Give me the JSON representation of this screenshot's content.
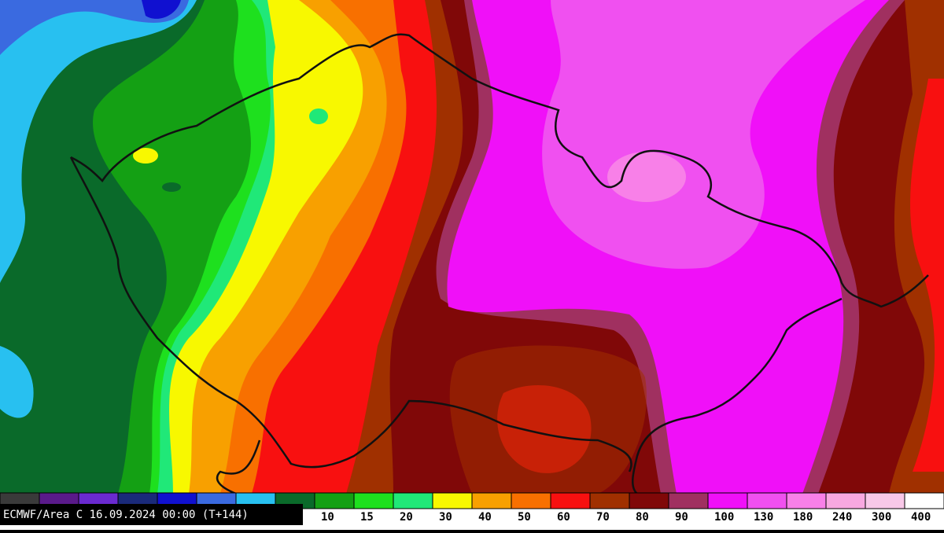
{
  "header": {
    "caption": "ECMWF/Area C 16.09.2024 00:00 (T+144)"
  },
  "legend": {
    "unlabeled_colors": [
      "#3a3a3a",
      "#5a1a8a",
      "#6a2ad0",
      "#1a2a7a",
      "#1010d0",
      "#3a6ae0",
      "#28c0f0",
      "#0a6a2a"
    ],
    "items": [
      {
        "color": "#14a014",
        "label": "10"
      },
      {
        "color": "#1ee01e",
        "label": "15"
      },
      {
        "color": "#20e878",
        "label": "20"
      },
      {
        "color": "#f8f800",
        "label": "30"
      },
      {
        "color": "#f8a000",
        "label": "40"
      },
      {
        "color": "#f87000",
        "label": "50"
      },
      {
        "color": "#f81010",
        "label": "60"
      },
      {
        "color": "#a03000",
        "label": "70"
      },
      {
        "color": "#800808",
        "label": "80"
      },
      {
        "color": "#a03060",
        "label": "90"
      },
      {
        "color": "#f010f8",
        "label": "100"
      },
      {
        "color": "#f050f0",
        "label": "130"
      },
      {
        "color": "#f880e8",
        "label": "180"
      },
      {
        "color": "#f8a8e0",
        "label": "240"
      },
      {
        "color": "#f8c8e8",
        "label": "300"
      },
      {
        "color": "#ffffff",
        "label": "400"
      }
    ]
  }
}
